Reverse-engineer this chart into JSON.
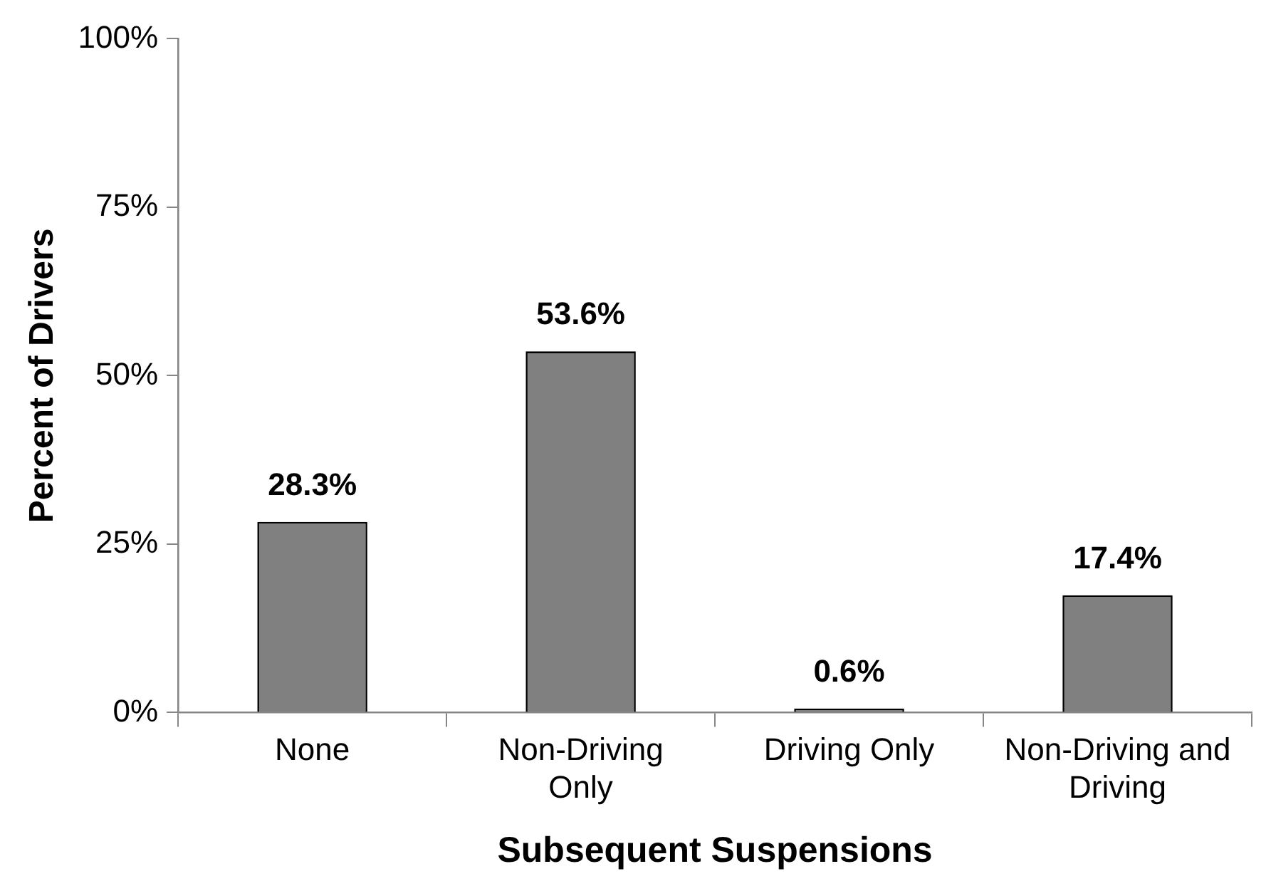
{
  "chart_data": {
    "type": "bar",
    "xlabel": "Subsequent Suspensions",
    "ylabel": "Percent of Drivers",
    "categories": [
      "None",
      "Non-Driving Only",
      "Driving Only",
      "Non-Driving and Driving"
    ],
    "values": [
      28.3,
      53.6,
      0.6,
      17.4
    ],
    "color": "#808080",
    "value_labels": [
      "28.3%",
      "53.6%",
      "0.6%",
      "17.4%"
    ],
    "ylim": [
      0,
      100
    ],
    "yticks": [
      {
        "value": 0,
        "label": "0%"
      },
      {
        "value": 25,
        "label": "25%"
      },
      {
        "value": 50,
        "label": "50%"
      },
      {
        "value": 75,
        "label": "75%"
      },
      {
        "value": 100,
        "label": "100%"
      }
    ],
    "grid": false,
    "legend": false
  }
}
